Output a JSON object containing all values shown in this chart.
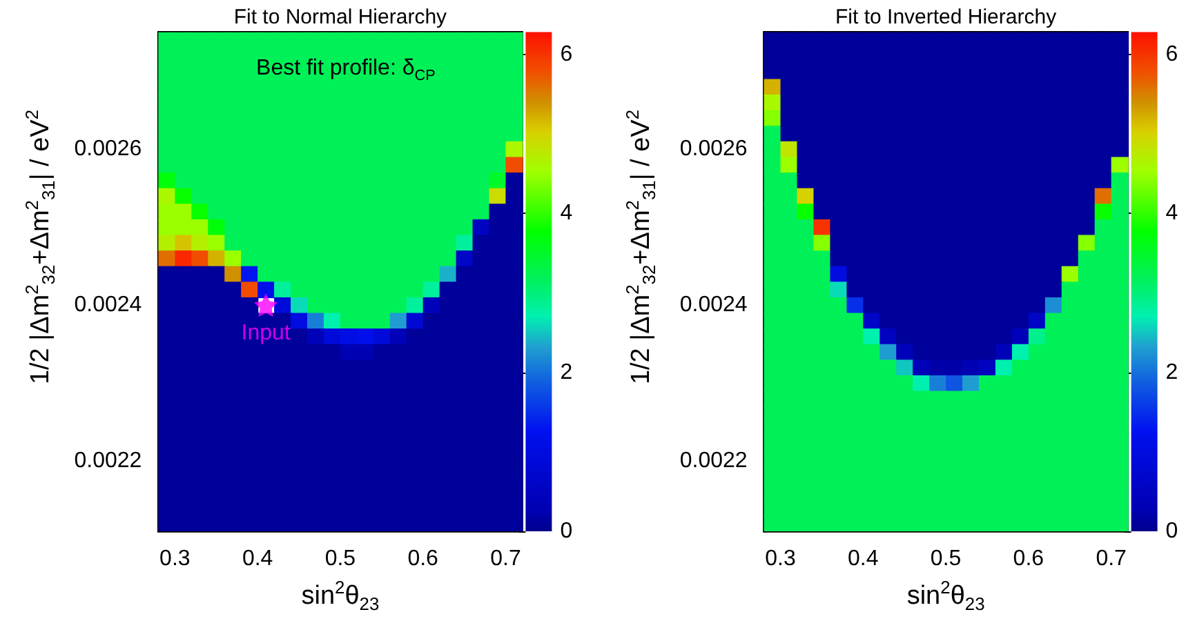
{
  "chart_data": [
    {
      "type": "heatmap",
      "title": "Fit to Normal Hierarchy",
      "xlabel": "sin$^{2}$θ$_{23}$",
      "ylabel": "1/2 |Δm$^{2}$$_{32}$+Δm$^{2}$$_{31}$| / eV$^{2}$",
      "annotations": [
        "Best fit profile: δ$_{CP}$"
      ],
      "x": [
        0.29,
        0.31,
        0.33,
        0.35,
        0.37,
        0.39,
        0.41,
        0.43,
        0.45,
        0.47,
        0.49,
        0.51,
        0.53,
        0.55,
        0.57,
        0.59,
        0.61,
        0.63,
        0.65,
        0.67,
        0.69,
        0.71
      ],
      "cells": [
        [
          3.2,
          3.2,
          3.2,
          3.2,
          3.2,
          3.2,
          3.2,
          3.2,
          3.2,
          3.2,
          3.2,
          3.2,
          3.2,
          3.2,
          3.2,
          3.2,
          3.2,
          3.2,
          3.2,
          3.2,
          3.2,
          3.2
        ],
        [
          3.2,
          3.2,
          3.2,
          3.2,
          3.2,
          3.2,
          3.2,
          3.2,
          3.2,
          3.2,
          3.2,
          3.2,
          3.2,
          3.2,
          3.2,
          3.2,
          3.2,
          3.2,
          3.2,
          3.2,
          3.2,
          3.2
        ],
        [
          3.2,
          3.2,
          3.2,
          3.2,
          3.2,
          3.2,
          3.2,
          3.2,
          3.2,
          3.2,
          3.2,
          3.2,
          3.2,
          3.2,
          3.2,
          3.2,
          3.2,
          3.2,
          3.2,
          3.2,
          3.2,
          3.2
        ],
        [
          3.2,
          3.2,
          3.2,
          3.2,
          3.2,
          3.2,
          3.2,
          3.2,
          3.2,
          3.2,
          3.2,
          3.2,
          3.2,
          3.2,
          3.2,
          3.2,
          3.2,
          3.2,
          3.2,
          3.2,
          3.2,
          3.2
        ],
        [
          3.2,
          3.2,
          3.2,
          3.2,
          3.2,
          3.2,
          3.2,
          3.2,
          3.2,
          3.2,
          3.2,
          3.2,
          3.2,
          3.2,
          3.2,
          3.2,
          3.2,
          3.2,
          3.2,
          3.2,
          3.2,
          3.2
        ],
        [
          3.2,
          3.2,
          3.2,
          3.2,
          3.2,
          3.2,
          3.2,
          3.2,
          3.2,
          3.2,
          3.2,
          3.2,
          3.2,
          3.2,
          3.2,
          3.2,
          3.2,
          3.2,
          3.2,
          3.2,
          3.2,
          3.2
        ],
        [
          3.2,
          3.2,
          3.2,
          3.2,
          3.2,
          3.2,
          3.2,
          3.2,
          3.2,
          3.2,
          3.2,
          3.2,
          3.2,
          3.2,
          3.2,
          3.2,
          3.2,
          3.2,
          3.2,
          3.2,
          3.2,
          3.2
        ],
        [
          3.2,
          3.2,
          3.2,
          3.2,
          3.2,
          3.2,
          3.2,
          3.2,
          3.2,
          3.2,
          3.2,
          3.2,
          3.2,
          3.2,
          3.2,
          3.2,
          3.2,
          3.2,
          3.2,
          3.2,
          3.2,
          4.6
        ],
        [
          3.2,
          3.2,
          3.2,
          3.2,
          3.2,
          3.2,
          3.2,
          3.2,
          3.2,
          3.2,
          3.2,
          3.2,
          3.2,
          3.2,
          3.2,
          3.2,
          3.2,
          3.2,
          3.2,
          3.2,
          3.2,
          5.8
        ],
        [
          3.7,
          3.2,
          3.2,
          3.2,
          3.2,
          3.2,
          3.2,
          3.2,
          3.2,
          3.2,
          3.2,
          3.2,
          3.2,
          3.2,
          3.2,
          3.2,
          3.2,
          3.2,
          3.2,
          3.2,
          3.5,
          0.1
        ],
        [
          4.6,
          3.8,
          3.2,
          3.2,
          3.2,
          3.2,
          3.2,
          3.2,
          3.2,
          3.2,
          3.2,
          3.2,
          3.2,
          3.2,
          3.2,
          3.2,
          3.2,
          3.2,
          3.2,
          3.2,
          4.9,
          0.1
        ],
        [
          4.5,
          4.5,
          3.8,
          3.2,
          3.2,
          3.2,
          3.2,
          3.2,
          3.2,
          3.2,
          3.2,
          3.2,
          3.2,
          3.2,
          3.2,
          3.2,
          3.2,
          3.2,
          3.2,
          3.2,
          0.1,
          0.1
        ],
        [
          4.5,
          4.5,
          4.5,
          3.7,
          3.2,
          3.2,
          3.2,
          3.2,
          3.2,
          3.2,
          3.2,
          3.2,
          3.2,
          3.2,
          3.2,
          3.2,
          3.2,
          3.2,
          3.2,
          0.5,
          0.1,
          0.1
        ],
        [
          4.7,
          5.1,
          4.7,
          4.5,
          3.2,
          3.2,
          3.2,
          3.2,
          3.2,
          3.2,
          3.2,
          3.2,
          3.2,
          3.2,
          3.2,
          3.2,
          3.2,
          3.2,
          2.8,
          0.1,
          0.1,
          0.1
        ],
        [
          5.6,
          6.1,
          5.8,
          5.2,
          4.5,
          3.2,
          3.2,
          3.2,
          3.2,
          3.2,
          3.2,
          3.2,
          3.2,
          3.2,
          3.2,
          3.2,
          3.2,
          3.2,
          0.6,
          0.1,
          0.1,
          0.1
        ],
        [
          0.1,
          0.1,
          0.1,
          0.1,
          5.4,
          1.3,
          3.2,
          3.2,
          3.2,
          3.2,
          3.2,
          3.2,
          3.2,
          3.2,
          3.2,
          3.2,
          3.2,
          2.4,
          0.1,
          0.1,
          0.1,
          0.1
        ],
        [
          0.1,
          0.1,
          0.1,
          0.1,
          0.1,
          5.8,
          1.2,
          2.8,
          3.2,
          3.2,
          3.2,
          3.2,
          3.2,
          3.2,
          3.2,
          3.2,
          2.8,
          0.1,
          0.1,
          0.1,
          0.1,
          0.1
        ],
        [
          0.1,
          0.1,
          0.1,
          0.1,
          0.1,
          0.1,
          null,
          0.9,
          2.6,
          3.2,
          3.2,
          3.2,
          3.2,
          3.2,
          3.2,
          2.8,
          0.4,
          0.1,
          0.1,
          0.1,
          0.1,
          0.1
        ],
        [
          0.1,
          0.1,
          0.1,
          0.1,
          0.1,
          0.1,
          0.1,
          0.1,
          1.0,
          2.1,
          2.7,
          3.2,
          3.2,
          3.2,
          2.3,
          0.8,
          0.1,
          0.1,
          0.1,
          0.1,
          0.1,
          0.1
        ],
        [
          0.1,
          0.1,
          0.1,
          0.1,
          0.1,
          0.1,
          0.1,
          0.1,
          0.1,
          0.4,
          0.9,
          1.1,
          1.2,
          0.9,
          0.4,
          0.1,
          0.1,
          0.1,
          0.1,
          0.1,
          0.1,
          0.1
        ],
        [
          0.1,
          0.1,
          0.1,
          0.1,
          0.1,
          0.1,
          0.1,
          0.1,
          0.1,
          0.1,
          0.1,
          0.3,
          0.3,
          0.1,
          0.1,
          0.1,
          0.1,
          0.1,
          0.1,
          0.1,
          0.1,
          0.1
        ],
        [
          0.1,
          0.1,
          0.1,
          0.1,
          0.1,
          0.1,
          0.1,
          0.1,
          0.1,
          0.1,
          0.1,
          0.1,
          0.1,
          0.1,
          0.1,
          0.1,
          0.1,
          0.1,
          0.1,
          0.1,
          0.1,
          0.1
        ],
        [
          0.1,
          0.1,
          0.1,
          0.1,
          0.1,
          0.1,
          0.1,
          0.1,
          0.1,
          0.1,
          0.1,
          0.1,
          0.1,
          0.1,
          0.1,
          0.1,
          0.1,
          0.1,
          0.1,
          0.1,
          0.1,
          0.1
        ],
        [
          0.1,
          0.1,
          0.1,
          0.1,
          0.1,
          0.1,
          0.1,
          0.1,
          0.1,
          0.1,
          0.1,
          0.1,
          0.1,
          0.1,
          0.1,
          0.1,
          0.1,
          0.1,
          0.1,
          0.1,
          0.1,
          0.1
        ],
        [
          0.1,
          0.1,
          0.1,
          0.1,
          0.1,
          0.1,
          0.1,
          0.1,
          0.1,
          0.1,
          0.1,
          0.1,
          0.1,
          0.1,
          0.1,
          0.1,
          0.1,
          0.1,
          0.1,
          0.1,
          0.1,
          0.1
        ],
        [
          0.1,
          0.1,
          0.1,
          0.1,
          0.1,
          0.1,
          0.1,
          0.1,
          0.1,
          0.1,
          0.1,
          0.1,
          0.1,
          0.1,
          0.1,
          0.1,
          0.1,
          0.1,
          0.1,
          0.1,
          0.1,
          0.1
        ],
        [
          0.1,
          0.1,
          0.1,
          0.1,
          0.1,
          0.1,
          0.1,
          0.1,
          0.1,
          0.1,
          0.1,
          0.1,
          0.1,
          0.1,
          0.1,
          0.1,
          0.1,
          0.1,
          0.1,
          0.1,
          0.1,
          0.1
        ],
        [
          0.1,
          0.1,
          0.1,
          0.1,
          0.1,
          0.1,
          0.1,
          0.1,
          0.1,
          0.1,
          0.1,
          0.1,
          0.1,
          0.1,
          0.1,
          0.1,
          0.1,
          0.1,
          0.1,
          0.1,
          0.1,
          0.1
        ],
        [
          0.1,
          0.1,
          0.1,
          0.1,
          0.1,
          0.1,
          0.1,
          0.1,
          0.1,
          0.1,
          0.1,
          0.1,
          0.1,
          0.1,
          0.1,
          0.1,
          0.1,
          0.1,
          0.1,
          0.1,
          0.1,
          0.1
        ],
        [
          0.1,
          0.1,
          0.1,
          0.1,
          0.1,
          0.1,
          0.1,
          0.1,
          0.1,
          0.1,
          0.1,
          0.1,
          0.1,
          0.1,
          0.1,
          0.1,
          0.1,
          0.1,
          0.1,
          0.1,
          0.1,
          0.1
        ],
        [
          0.1,
          0.1,
          0.1,
          0.1,
          0.1,
          0.1,
          0.1,
          0.1,
          0.1,
          0.1,
          0.1,
          0.1,
          0.1,
          0.1,
          0.1,
          0.1,
          0.1,
          0.1,
          0.1,
          0.1,
          0.1,
          0.1
        ],
        [
          0.1,
          0.1,
          0.1,
          0.1,
          0.1,
          0.1,
          0.1,
          0.1,
          0.1,
          0.1,
          0.1,
          0.1,
          0.1,
          0.1,
          0.1,
          0.1,
          0.1,
          0.1,
          0.1,
          0.1,
          0.1,
          0.1
        ]
      ],
      "xlim": [
        0.28,
        0.72
      ],
      "xticks": [
        0.3,
        0.4,
        0.5,
        0.6,
        0.7
      ],
      "ylim": [
        0.00211,
        0.00275
      ],
      "yticks": [
        0.0022,
        0.0024,
        0.0026
      ],
      "clim": [
        0,
        6.28
      ],
      "cticks": [
        0,
        2,
        4,
        6
      ],
      "marker": "star",
      "series": [
        {
          "type": "scatter",
          "name": "Input",
          "color": "#ff00ff",
          "x": [
            0.41
          ],
          "values": [
            0.0024
          ]
        }
      ]
    },
    {
      "type": "heatmap",
      "title": "Fit to Inverted Hierarchy",
      "xlabel": "sin$^{2}$θ$_{23}$",
      "ylabel": "1/2 |Δm$^{2}$$_{32}$+Δm$^{2}$$_{31}$| / eV$^{2}$",
      "x": [
        0.29,
        0.31,
        0.33,
        0.35,
        0.37,
        0.39,
        0.41,
        0.43,
        0.45,
        0.47,
        0.49,
        0.51,
        0.53,
        0.55,
        0.57,
        0.59,
        0.61,
        0.63,
        0.65,
        0.67,
        0.69,
        0.71
      ],
      "cells": [
        [
          0.1,
          0.1,
          0.1,
          0.1,
          0.1,
          0.1,
          0.1,
          0.1,
          0.1,
          0.1,
          0.1,
          0.1,
          0.1,
          0.1,
          0.1,
          0.1,
          0.1,
          0.1,
          0.1,
          0.1,
          0.1,
          0.1
        ],
        [
          0.1,
          0.1,
          0.1,
          0.1,
          0.1,
          0.1,
          0.1,
          0.1,
          0.1,
          0.1,
          0.1,
          0.1,
          0.1,
          0.1,
          0.1,
          0.1,
          0.1,
          0.1,
          0.1,
          0.1,
          0.1,
          0.1
        ],
        [
          0.1,
          0.1,
          0.1,
          0.1,
          0.1,
          0.1,
          0.1,
          0.1,
          0.1,
          0.1,
          0.1,
          0.1,
          0.1,
          0.1,
          0.1,
          0.1,
          0.1,
          0.1,
          0.1,
          0.1,
          0.1,
          0.1
        ],
        [
          5.2,
          0.1,
          0.1,
          0.1,
          0.1,
          0.1,
          0.1,
          0.1,
          0.1,
          0.1,
          0.1,
          0.1,
          0.1,
          0.1,
          0.1,
          0.1,
          0.1,
          0.1,
          0.1,
          0.1,
          0.1,
          0.1
        ],
        [
          4.6,
          0.1,
          0.1,
          0.1,
          0.1,
          0.1,
          0.1,
          0.1,
          0.1,
          0.1,
          0.1,
          0.1,
          0.1,
          0.1,
          0.1,
          0.1,
          0.1,
          0.1,
          0.1,
          0.1,
          0.1,
          0.1
        ],
        [
          4.4,
          0.1,
          0.1,
          0.1,
          0.1,
          0.1,
          0.1,
          0.1,
          0.1,
          0.1,
          0.1,
          0.1,
          0.1,
          0.1,
          0.1,
          0.1,
          0.1,
          0.1,
          0.1,
          0.1,
          0.1,
          0.1
        ],
        [
          3.2,
          0.1,
          0.1,
          0.1,
          0.1,
          0.1,
          0.1,
          0.1,
          0.1,
          0.1,
          0.1,
          0.1,
          0.1,
          0.1,
          0.1,
          0.1,
          0.1,
          0.1,
          0.1,
          0.1,
          0.1,
          0.1
        ],
        [
          3.2,
          4.8,
          0.1,
          0.1,
          0.1,
          0.1,
          0.1,
          0.1,
          0.1,
          0.1,
          0.1,
          0.1,
          0.1,
          0.1,
          0.1,
          0.1,
          0.1,
          0.1,
          0.1,
          0.1,
          0.1,
          0.1
        ],
        [
          3.2,
          4.5,
          0.1,
          0.1,
          0.1,
          0.1,
          0.1,
          0.1,
          0.1,
          0.1,
          0.1,
          0.1,
          0.1,
          0.1,
          0.1,
          0.1,
          0.1,
          0.1,
          0.1,
          0.1,
          0.1,
          4.5
        ],
        [
          3.2,
          3.2,
          0.1,
          0.1,
          0.1,
          0.1,
          0.1,
          0.1,
          0.1,
          0.1,
          0.1,
          0.1,
          0.1,
          0.1,
          0.1,
          0.1,
          0.1,
          0.1,
          0.1,
          0.1,
          0.1,
          3.2
        ],
        [
          3.2,
          3.2,
          5.0,
          0.1,
          0.1,
          0.1,
          0.1,
          0.1,
          0.1,
          0.1,
          0.1,
          0.1,
          0.1,
          0.1,
          0.1,
          0.1,
          0.1,
          0.1,
          0.1,
          0.1,
          5.6,
          3.2
        ],
        [
          3.2,
          3.2,
          3.8,
          0.1,
          0.1,
          0.1,
          0.1,
          0.1,
          0.1,
          0.1,
          0.1,
          0.1,
          0.1,
          0.1,
          0.1,
          0.1,
          0.1,
          0.1,
          0.1,
          0.1,
          3.8,
          3.2
        ],
        [
          3.2,
          3.2,
          3.2,
          6.0,
          0.1,
          0.1,
          0.1,
          0.1,
          0.1,
          0.1,
          0.1,
          0.1,
          0.1,
          0.1,
          0.1,
          0.1,
          0.1,
          0.1,
          0.1,
          0.1,
          3.2,
          3.2
        ],
        [
          3.2,
          3.2,
          3.2,
          4.4,
          0.1,
          0.1,
          0.1,
          0.1,
          0.1,
          0.1,
          0.1,
          0.1,
          0.1,
          0.1,
          0.1,
          0.1,
          0.1,
          0.1,
          0.1,
          4.4,
          3.2,
          3.2
        ],
        [
          3.2,
          3.2,
          3.2,
          3.2,
          0.1,
          0.1,
          0.1,
          0.1,
          0.1,
          0.1,
          0.1,
          0.1,
          0.1,
          0.1,
          0.1,
          0.1,
          0.1,
          0.1,
          0.1,
          3.2,
          3.2,
          3.2
        ],
        [
          3.2,
          3.2,
          3.2,
          3.2,
          1.0,
          0.1,
          0.1,
          0.1,
          0.1,
          0.1,
          0.1,
          0.1,
          0.1,
          0.1,
          0.1,
          0.1,
          0.1,
          0.1,
          4.5,
          3.2,
          3.2,
          3.2
        ],
        [
          3.2,
          3.2,
          3.2,
          3.2,
          2.6,
          0.1,
          0.1,
          0.1,
          0.1,
          0.1,
          0.1,
          0.1,
          0.1,
          0.1,
          0.1,
          0.1,
          0.1,
          0.1,
          3.2,
          3.2,
          3.2,
          3.2
        ],
        [
          3.2,
          3.2,
          3.2,
          3.2,
          3.2,
          1.5,
          0.1,
          0.1,
          0.1,
          0.1,
          0.1,
          0.1,
          0.1,
          0.1,
          0.1,
          0.1,
          0.1,
          2.2,
          3.2,
          3.2,
          3.2,
          3.2
        ],
        [
          3.2,
          3.2,
          3.2,
          3.2,
          3.2,
          3.2,
          0.6,
          0.1,
          0.1,
          0.1,
          0.1,
          0.1,
          0.1,
          0.1,
          0.1,
          0.1,
          0.6,
          3.2,
          3.2,
          3.2,
          3.2,
          3.2
        ],
        [
          3.2,
          3.2,
          3.2,
          3.2,
          3.2,
          3.2,
          2.7,
          0.5,
          0.1,
          0.1,
          0.1,
          0.1,
          0.1,
          0.1,
          0.1,
          0.4,
          2.9,
          3.2,
          3.2,
          3.2,
          3.2,
          3.2
        ],
        [
          3.2,
          3.2,
          3.2,
          3.2,
          3.2,
          3.2,
          3.2,
          2.3,
          0.4,
          0.1,
          0.1,
          0.1,
          0.1,
          0.1,
          0.4,
          2.7,
          3.2,
          3.2,
          3.2,
          3.2,
          3.2,
          3.2
        ],
        [
          3.2,
          3.2,
          3.2,
          3.2,
          3.2,
          3.2,
          3.2,
          3.2,
          2.5,
          0.4,
          0.2,
          0.2,
          0.3,
          0.5,
          2.7,
          3.2,
          3.2,
          3.2,
          3.2,
          3.2,
          3.2,
          3.2
        ],
        [
          3.2,
          3.2,
          3.2,
          3.2,
          3.2,
          3.2,
          3.2,
          3.2,
          3.2,
          2.7,
          2.1,
          1.8,
          2.3,
          3.2,
          3.2,
          3.2,
          3.2,
          3.2,
          3.2,
          3.2,
          3.2,
          3.2
        ],
        [
          3.2,
          3.2,
          3.2,
          3.2,
          3.2,
          3.2,
          3.2,
          3.2,
          3.2,
          3.2,
          3.2,
          3.2,
          3.2,
          3.2,
          3.2,
          3.2,
          3.2,
          3.2,
          3.2,
          3.2,
          3.2,
          3.2
        ],
        [
          3.2,
          3.2,
          3.2,
          3.2,
          3.2,
          3.2,
          3.2,
          3.2,
          3.2,
          3.2,
          3.2,
          3.2,
          3.2,
          3.2,
          3.2,
          3.2,
          3.2,
          3.2,
          3.2,
          3.2,
          3.2,
          3.2
        ],
        [
          3.2,
          3.2,
          3.2,
          3.2,
          3.2,
          3.2,
          3.2,
          3.2,
          3.2,
          3.2,
          3.2,
          3.2,
          3.2,
          3.2,
          3.2,
          3.2,
          3.2,
          3.2,
          3.2,
          3.2,
          3.2,
          3.2
        ],
        [
          3.2,
          3.2,
          3.2,
          3.2,
          3.2,
          3.2,
          3.2,
          3.2,
          3.2,
          3.2,
          3.2,
          3.2,
          3.2,
          3.2,
          3.2,
          3.2,
          3.2,
          3.2,
          3.2,
          3.2,
          3.2,
          3.2
        ],
        [
          3.2,
          3.2,
          3.2,
          3.2,
          3.2,
          3.2,
          3.2,
          3.2,
          3.2,
          3.2,
          3.2,
          3.2,
          3.2,
          3.2,
          3.2,
          3.2,
          3.2,
          3.2,
          3.2,
          3.2,
          3.2,
          3.2
        ],
        [
          3.2,
          3.2,
          3.2,
          3.2,
          3.2,
          3.2,
          3.2,
          3.2,
          3.2,
          3.2,
          3.2,
          3.2,
          3.2,
          3.2,
          3.2,
          3.2,
          3.2,
          3.2,
          3.2,
          3.2,
          3.2,
          3.2
        ],
        [
          3.2,
          3.2,
          3.2,
          3.2,
          3.2,
          3.2,
          3.2,
          3.2,
          3.2,
          3.2,
          3.2,
          3.2,
          3.2,
          3.2,
          3.2,
          3.2,
          3.2,
          3.2,
          3.2,
          3.2,
          3.2,
          3.2
        ],
        [
          3.2,
          3.2,
          3.2,
          3.2,
          3.2,
          3.2,
          3.2,
          3.2,
          3.2,
          3.2,
          3.2,
          3.2,
          3.2,
          3.2,
          3.2,
          3.2,
          3.2,
          3.2,
          3.2,
          3.2,
          3.2,
          3.2
        ],
        [
          3.2,
          3.2,
          3.2,
          3.2,
          3.2,
          3.2,
          3.2,
          3.2,
          3.2,
          3.2,
          3.2,
          3.2,
          3.2,
          3.2,
          3.2,
          3.2,
          3.2,
          3.2,
          3.2,
          3.2,
          3.2,
          3.2
        ]
      ],
      "xlim": [
        0.28,
        0.72
      ],
      "xticks": [
        0.3,
        0.4,
        0.5,
        0.6,
        0.7
      ],
      "ylim": [
        0.00211,
        0.00275
      ],
      "yticks": [
        0.0022,
        0.0024,
        0.0026
      ],
      "clim": [
        0,
        6.28
      ],
      "cticks": [
        0,
        2,
        4,
        6
      ]
    }
  ]
}
